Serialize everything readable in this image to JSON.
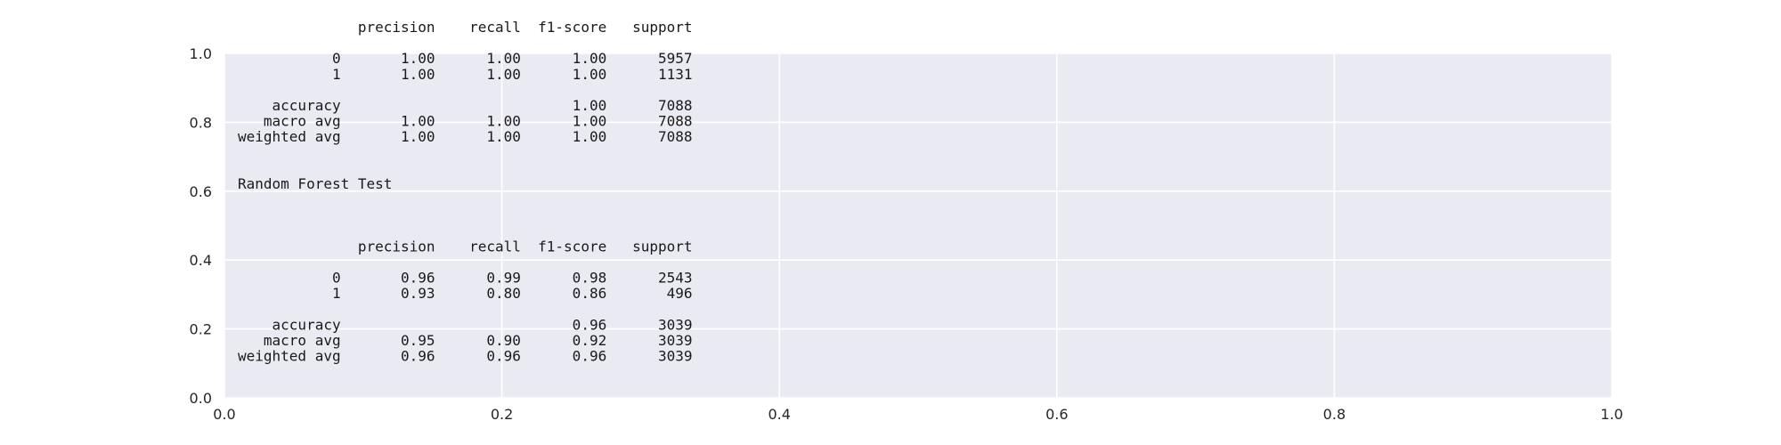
{
  "chart_data": {
    "type": "table",
    "background": "#eaeaf2",
    "gridline_color": "#ffffff",
    "grid": true,
    "xlim": [
      0.0,
      1.0
    ],
    "ylim": [
      0.0,
      1.0
    ],
    "x_ticks": [
      "0.0",
      "0.2",
      "0.4",
      "0.6",
      "0.8",
      "1.0"
    ],
    "y_ticks": [
      "0.0",
      "0.2",
      "0.4",
      "0.6",
      "0.8",
      "1.0"
    ],
    "report_lines": [
      "              precision    recall  f1-score   support",
      "",
      "           0       1.00      1.00      1.00      5957",
      "           1       1.00      1.00      1.00      1131",
      "",
      "    accuracy                           1.00      7088",
      "   macro avg       1.00      1.00      1.00      7088",
      "weighted avg       1.00      1.00      1.00      7088",
      "",
      "",
      "Random Forest Test",
      "",
      "",
      "",
      "              precision    recall  f1-score   support",
      "",
      "           0       0.96      0.99      0.98      2543",
      "           1       0.93      0.80      0.86       496",
      "",
      "    accuracy                           0.96      3039",
      "   macro avg       0.95      0.90      0.92      3039",
      "weighted avg       0.96      0.96      0.96      3039"
    ],
    "reports": [
      {
        "title": "",
        "columns": [
          "precision",
          "recall",
          "f1-score",
          "support"
        ],
        "rows": [
          {
            "label": "0",
            "precision": 1.0,
            "recall": 1.0,
            "f1-score": 1.0,
            "support": 5957
          },
          {
            "label": "1",
            "precision": 1.0,
            "recall": 1.0,
            "f1-score": 1.0,
            "support": 1131
          },
          {
            "label": "accuracy",
            "f1-score": 1.0,
            "support": 7088
          },
          {
            "label": "macro avg",
            "precision": 1.0,
            "recall": 1.0,
            "f1-score": 1.0,
            "support": 7088
          },
          {
            "label": "weighted avg",
            "precision": 1.0,
            "recall": 1.0,
            "f1-score": 1.0,
            "support": 7088
          }
        ]
      },
      {
        "title": "Random Forest Test",
        "columns": [
          "precision",
          "recall",
          "f1-score",
          "support"
        ],
        "rows": [
          {
            "label": "0",
            "precision": 0.96,
            "recall": 0.99,
            "f1-score": 0.98,
            "support": 2543
          },
          {
            "label": "1",
            "precision": 0.93,
            "recall": 0.8,
            "f1-score": 0.86,
            "support": 496
          },
          {
            "label": "accuracy",
            "f1-score": 0.96,
            "support": 3039
          },
          {
            "label": "macro avg",
            "precision": 0.95,
            "recall": 0.9,
            "f1-score": 0.92,
            "support": 3039
          },
          {
            "label": "weighted avg",
            "precision": 0.96,
            "recall": 0.96,
            "f1-score": 0.96,
            "support": 3039
          }
        ]
      }
    ]
  }
}
